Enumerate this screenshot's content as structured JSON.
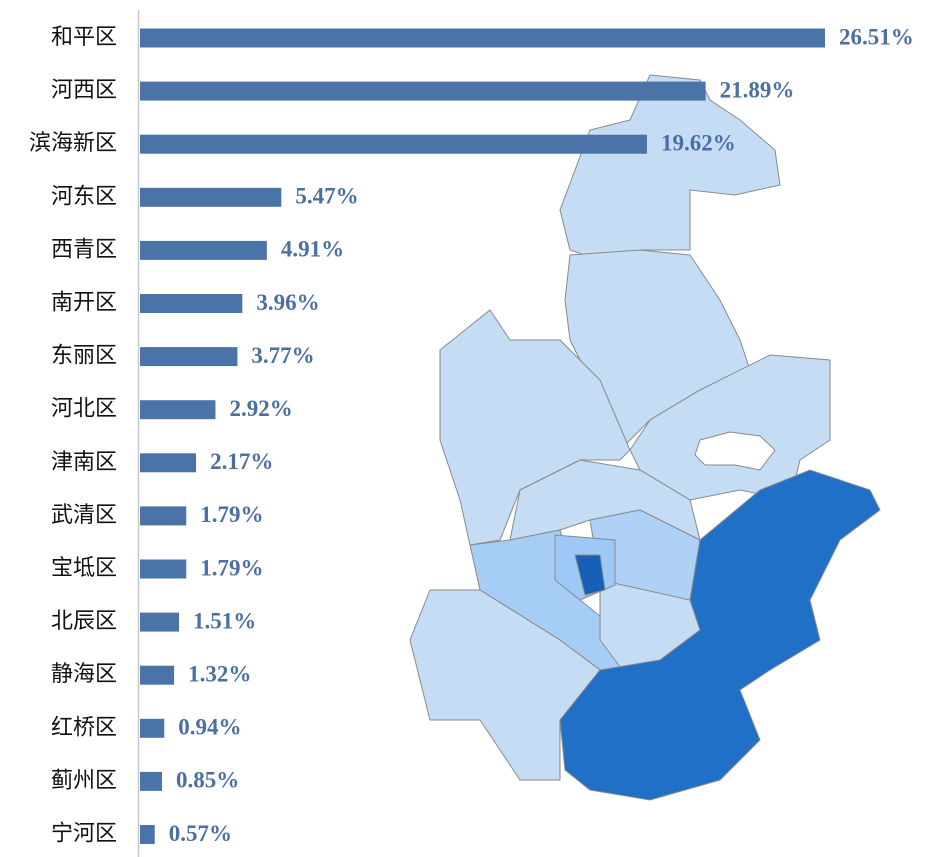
{
  "chart_data": {
    "type": "bar",
    "orientation": "horizontal",
    "color": "#4a74a8",
    "categories": [
      "和平区",
      "河西区",
      "滨海新区",
      "河东区",
      "西青区",
      "南开区",
      "东丽区",
      "河北区",
      "津南区",
      "武清区",
      "宝坻区",
      "北辰区",
      "静海区",
      "红桥区",
      "蓟州区",
      "宁河区"
    ],
    "values": [
      26.51,
      21.89,
      19.62,
      5.47,
      4.91,
      3.96,
      3.77,
      2.92,
      2.17,
      1.79,
      1.79,
      1.51,
      1.32,
      0.94,
      0.85,
      0.57
    ],
    "value_labels": [
      "26.51%",
      "21.89%",
      "19.62%",
      "5.47%",
      "4.91%",
      "3.96%",
      "3.77%",
      "2.92%",
      "2.17%",
      "1.79%",
      "1.79%",
      "1.51%",
      "1.32%",
      "0.94%",
      "0.85%",
      "0.57%"
    ]
  }
}
